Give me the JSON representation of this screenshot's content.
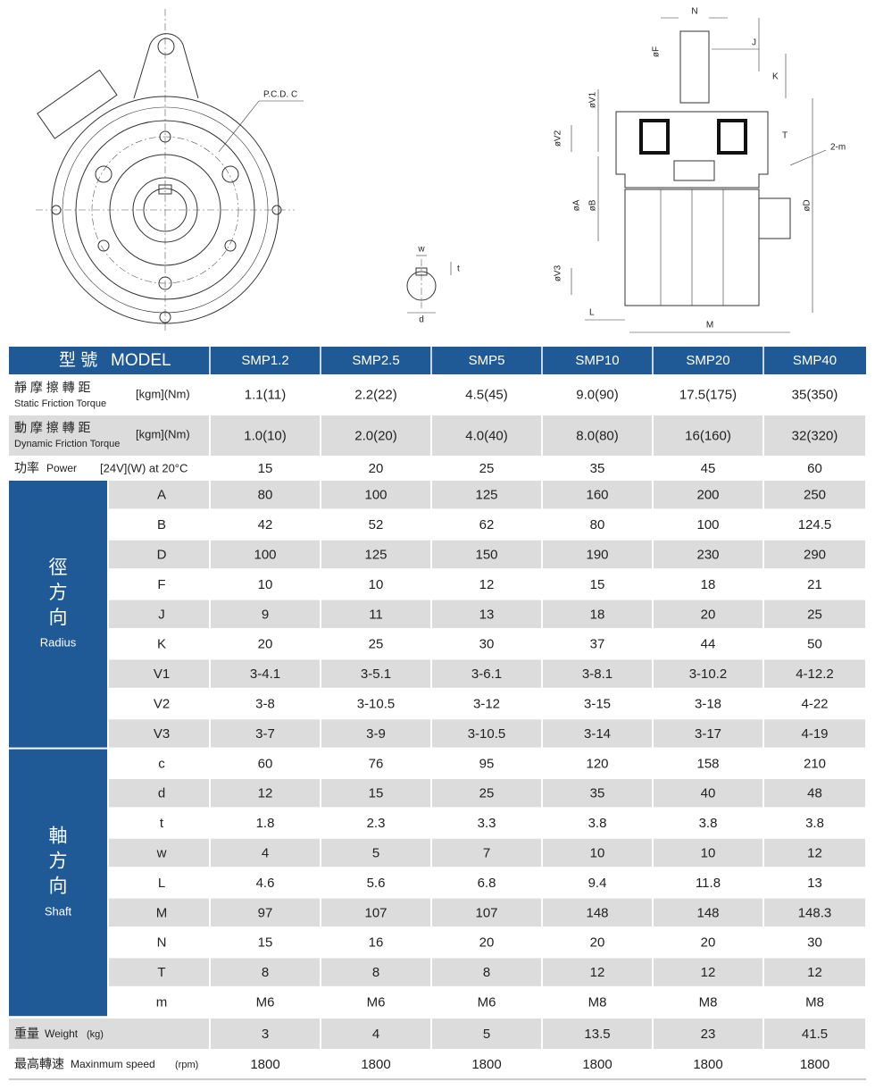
{
  "drawing_labels": {
    "pcd": "P.C.D. C",
    "w": "w",
    "t": "t",
    "d": "d",
    "N": "N",
    "J": "J",
    "K": "K",
    "F": "øF",
    "V1": "øV1",
    "V2": "øV2",
    "V3": "øV3",
    "A": "øA",
    "B": "øB",
    "D": "øD",
    "T": "T",
    "m": "2-m",
    "L": "L",
    "M": "M"
  },
  "table": {
    "header": {
      "label_zh": "型 號",
      "label_en": "MODEL",
      "models": [
        "SMP1.2",
        "SMP2.5",
        "SMP5",
        "SMP10",
        "SMP20",
        "SMP40"
      ]
    },
    "rows": [
      {
        "label_zh": "靜 摩 擦 轉 距",
        "label_en": "Static Friction Torque",
        "unit": "[kgm](Nm)",
        "values": [
          "1.1(11)",
          "2.2(22)",
          "4.5(45)",
          "9.0(90)",
          "17.5(175)",
          "35(350)"
        ]
      },
      {
        "label_zh": "動 摩 擦 轉 距",
        "label_en": "Dynamic Friction Torque",
        "unit": "[kgm](Nm)",
        "values": [
          "1.0(10)",
          "2.0(20)",
          "4.0(40)",
          "8.0(80)",
          "16(160)",
          "32(320)"
        ]
      },
      {
        "label_zh": "功率",
        "label_en": "Power",
        "unit": "[24V](W) at 20°C",
        "values": [
          15,
          20,
          25,
          35,
          45,
          60
        ]
      }
    ],
    "groups": [
      {
        "label_zh": [
          "徑",
          "方",
          "向"
        ],
        "label_en": "Radius",
        "rows": [
          {
            "param": "A",
            "values": [
              80,
              100,
              125,
              160,
              200,
              250
            ]
          },
          {
            "param": "B",
            "values": [
              42,
              52,
              62,
              80,
              100,
              124.5
            ]
          },
          {
            "param": "D",
            "values": [
              100,
              125,
              150,
              190,
              230,
              290
            ]
          },
          {
            "param": "F",
            "values": [
              10,
              10,
              12,
              15,
              18,
              21
            ]
          },
          {
            "param": "J",
            "values": [
              9,
              11,
              13,
              18,
              20,
              25
            ]
          },
          {
            "param": "K",
            "values": [
              20,
              25,
              30,
              37,
              44,
              50
            ]
          },
          {
            "param": "V1",
            "values": [
              "3-4.1",
              "3-5.1",
              "3-6.1",
              "3-8.1",
              "3-10.2",
              "4-12.2"
            ]
          },
          {
            "param": "V2",
            "values": [
              "3-8",
              "3-10.5",
              "3-12",
              "3-15",
              "3-18",
              "4-22"
            ]
          },
          {
            "param": "V3",
            "values": [
              "3-7",
              "3-9",
              "3-10.5",
              "3-14",
              "3-17",
              "4-19"
            ]
          }
        ]
      },
      {
        "label_zh": [
          "軸",
          "方",
          "向"
        ],
        "label_en": "Shaft",
        "rows": [
          {
            "param": "c",
            "values": [
              60,
              76,
              95,
              120,
              158,
              210
            ]
          },
          {
            "param": "d",
            "values": [
              12,
              15,
              25,
              35,
              40,
              48
            ]
          },
          {
            "param": "t",
            "values": [
              1.8,
              2.3,
              3.3,
              3.8,
              3.8,
              3.8
            ]
          },
          {
            "param": "w",
            "values": [
              4,
              5,
              7,
              10,
              10,
              12
            ]
          },
          {
            "param": "L",
            "values": [
              4.6,
              5.6,
              6.8,
              9.4,
              11.8,
              13
            ]
          },
          {
            "param": "M",
            "values": [
              97,
              107,
              107,
              148,
              148,
              148.3
            ]
          },
          {
            "param": "N",
            "values": [
              15,
              16,
              20,
              20,
              20,
              30
            ]
          },
          {
            "param": "T",
            "values": [
              8,
              8,
              8,
              12,
              12,
              12
            ]
          },
          {
            "param": "m",
            "values": [
              "M6",
              "M6",
              "M6",
              "M8",
              "M8",
              "M8"
            ]
          }
        ]
      }
    ],
    "footer_rows": [
      {
        "label_zh": "重量",
        "label_en": "Weight",
        "unit": "(kg)",
        "values": [
          3,
          4,
          5,
          13.5,
          23,
          41.5
        ]
      },
      {
        "label_zh": "最高轉速",
        "label_en": "Maxinmum speed",
        "unit": "(rpm)",
        "values": [
          1800,
          1800,
          1800,
          1800,
          1800,
          1800
        ]
      }
    ]
  }
}
